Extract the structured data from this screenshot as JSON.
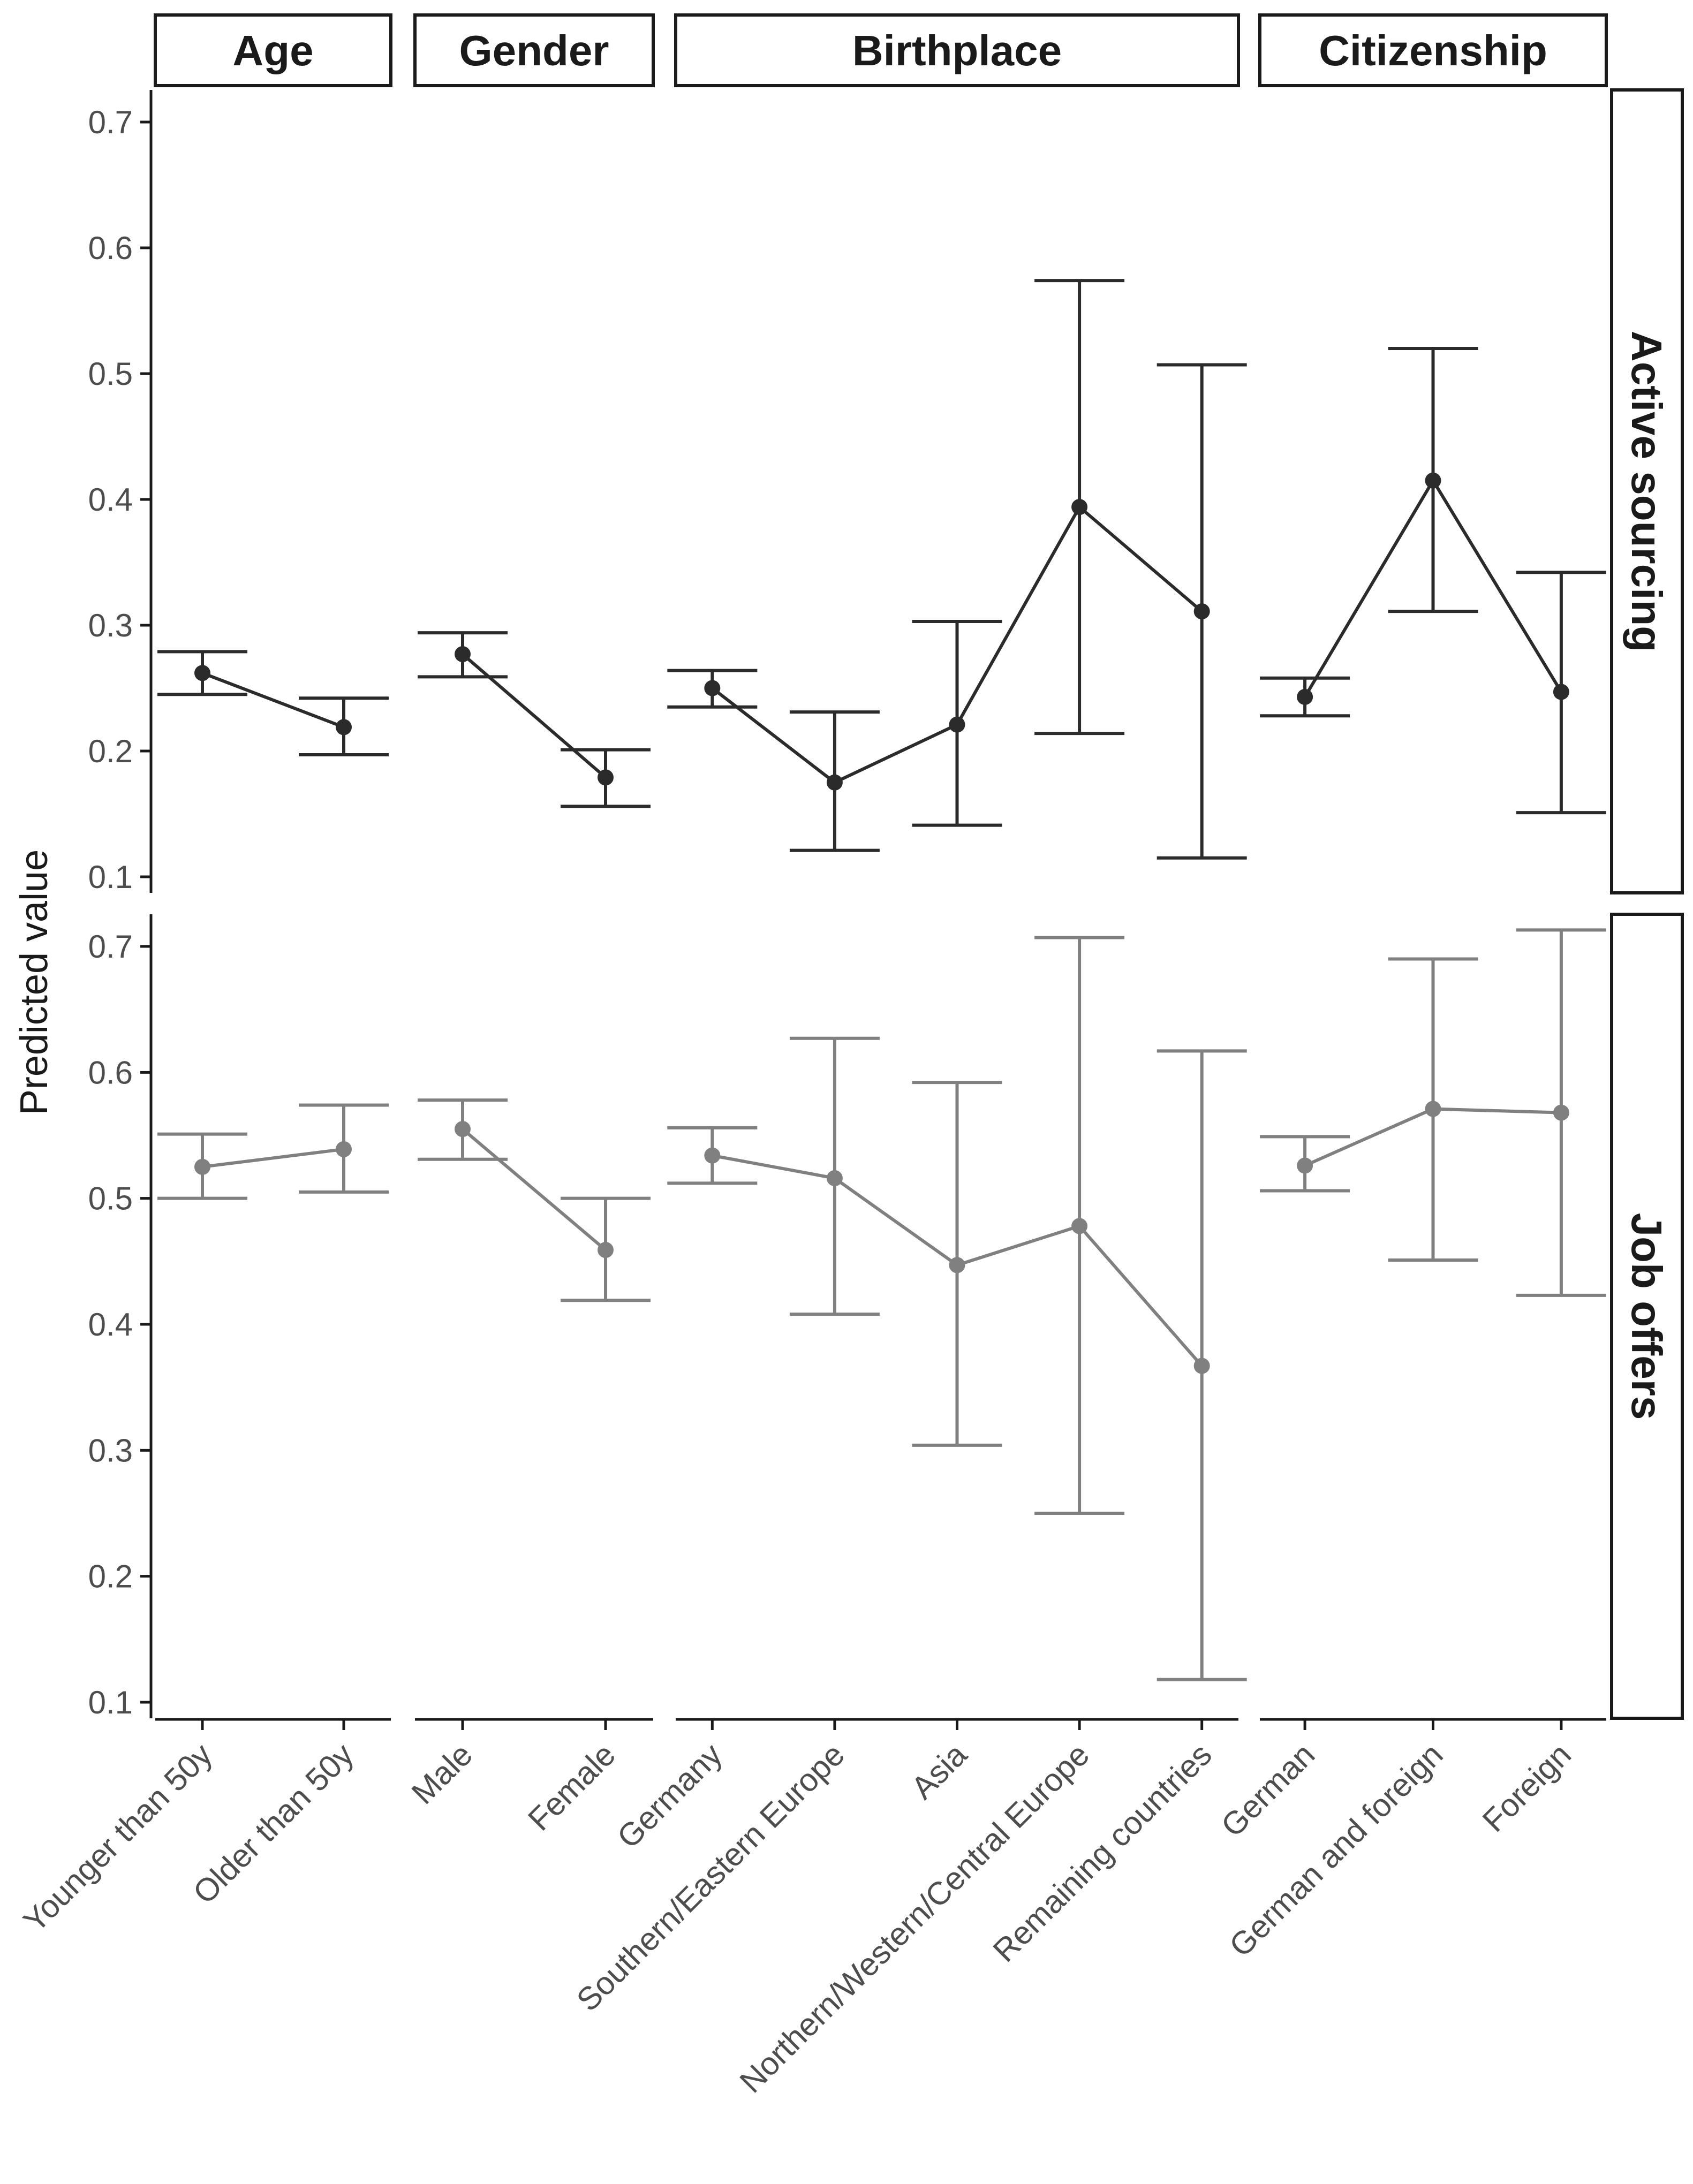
{
  "chart_data": {
    "type": "line",
    "ylabel": "Predicted value",
    "xlabel": "",
    "ylim": [
      0.1,
      0.7
    ],
    "yticks": [
      0.1,
      0.2,
      0.3,
      0.4,
      0.5,
      0.6,
      0.7
    ],
    "ytick_labels": [
      "0.1",
      "0.2",
      "0.3",
      "0.4",
      "0.5",
      "0.6",
      "0.7"
    ],
    "legend": "none",
    "columns": [
      {
        "title": "Age",
        "categories": [
          "Younger than 50y",
          "Older than 50y"
        ]
      },
      {
        "title": "Gender",
        "categories": [
          "Male",
          "Female"
        ]
      },
      {
        "title": "Birthplace",
        "categories": [
          "Germany",
          "Southern/Eastern Europe",
          "Asia",
          "Northern/Western/Central Europe",
          "Remaining countries"
        ]
      },
      {
        "title": "Citizenship",
        "categories": [
          "German",
          "German and foreign",
          "Foreign"
        ]
      }
    ],
    "rows": [
      {
        "title": "Active sourcing",
        "color": "#2b2b2b",
        "panels": [
          {
            "values": [
              0.262,
              0.219
            ],
            "lower": [
              0.245,
              0.197
            ],
            "upper": [
              0.279,
              0.242
            ]
          },
          {
            "values": [
              0.277,
              0.179
            ],
            "lower": [
              0.259,
              0.156
            ],
            "upper": [
              0.294,
              0.201
            ]
          },
          {
            "values": [
              0.25,
              0.175,
              0.221,
              0.394,
              0.311
            ],
            "lower": [
              0.235,
              0.121,
              0.141,
              0.214,
              0.115
            ],
            "upper": [
              0.264,
              0.231,
              0.303,
              0.574,
              0.507
            ]
          },
          {
            "values": [
              0.243,
              0.415,
              0.247
            ],
            "lower": [
              0.228,
              0.311,
              0.151
            ],
            "upper": [
              0.258,
              0.52,
              0.342
            ]
          }
        ]
      },
      {
        "title": "Job offers",
        "color": "#808080",
        "panels": [
          {
            "values": [
              0.525,
              0.539
            ],
            "lower": [
              0.5,
              0.505
            ],
            "upper": [
              0.551,
              0.574
            ]
          },
          {
            "values": [
              0.555,
              0.459
            ],
            "lower": [
              0.531,
              0.419
            ],
            "upper": [
              0.578,
              0.5
            ]
          },
          {
            "values": [
              0.534,
              0.516,
              0.447,
              0.478,
              0.367
            ],
            "lower": [
              0.512,
              0.408,
              0.304,
              0.25,
              0.118
            ],
            "upper": [
              0.556,
              0.627,
              0.592,
              0.707,
              0.617
            ]
          },
          {
            "values": [
              0.526,
              0.571,
              0.568
            ],
            "lower": [
              0.506,
              0.451,
              0.423
            ],
            "upper": [
              0.549,
              0.69,
              0.713
            ]
          }
        ]
      }
    ]
  }
}
